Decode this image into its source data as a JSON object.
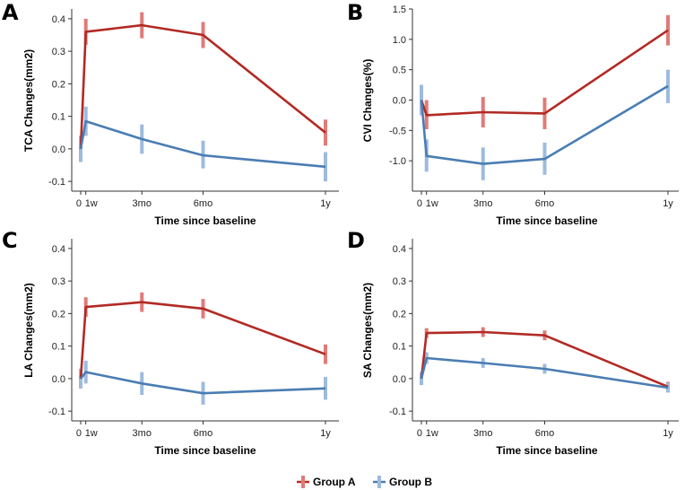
{
  "colors": {
    "group_a_line": "#b22a24",
    "group_a_bar": "#e07b78",
    "group_b_line": "#4a7db3",
    "group_b_bar": "#9dbbdf",
    "axis": "#333333"
  },
  "legend": {
    "items": [
      {
        "label": "Group A",
        "series": "a"
      },
      {
        "label": "Group B",
        "series": "b"
      }
    ]
  },
  "chart_data": [
    {
      "panel": "A",
      "type": "line",
      "title": "",
      "xlabel": "Time since baseline",
      "ylabel": "TCA Changes(mm2)",
      "x": [
        0,
        0.25,
        3,
        6,
        12
      ],
      "xticks": [
        0,
        0.25,
        3,
        6,
        12
      ],
      "xtick_labels": [
        "0",
        "1w",
        "3mo",
        "6mo",
        "1y"
      ],
      "ylim": [
        -0.13,
        0.43
      ],
      "yticks": [
        -0.1,
        0.0,
        0.1,
        0.2,
        0.3,
        0.4
      ],
      "ytick_labels": [
        "-0.1",
        "0.0",
        "0.1",
        "0.2",
        "0.3",
        "0.4"
      ],
      "series": [
        {
          "name": "Group A",
          "key": "a",
          "values": [
            0.0,
            0.36,
            0.38,
            0.35,
            0.05
          ],
          "lower": [
            -0.04,
            0.32,
            0.34,
            0.31,
            0.01
          ],
          "upper": [
            0.04,
            0.4,
            0.42,
            0.39,
            0.09
          ]
        },
        {
          "name": "Group B",
          "key": "b",
          "values": [
            0.0,
            0.085,
            0.03,
            -0.02,
            -0.055
          ],
          "lower": [
            -0.04,
            0.04,
            -0.015,
            -0.06,
            -0.1
          ],
          "upper": [
            0.04,
            0.13,
            0.075,
            0.025,
            -0.01
          ]
        }
      ]
    },
    {
      "panel": "B",
      "type": "line",
      "title": "",
      "xlabel": "Time since baseline",
      "ylabel": "CVI Changes(%)",
      "x": [
        0,
        0.25,
        3,
        6,
        12
      ],
      "xticks": [
        0,
        0.25,
        3,
        6,
        12
      ],
      "xtick_labels": [
        "0",
        "1w",
        "3mo",
        "6mo",
        "1y"
      ],
      "ylim": [
        -1.5,
        1.5
      ],
      "yticks": [
        -1.0,
        -0.5,
        0.0,
        0.5,
        1.0,
        1.5
      ],
      "ytick_labels": [
        "-1.0",
        "-0.5",
        "0.0",
        "0.5",
        "1.0",
        "1.5"
      ],
      "series": [
        {
          "name": "Group A",
          "key": "a",
          "values": [
            0.0,
            -0.25,
            -0.2,
            -0.22,
            1.15
          ],
          "lower": [
            -0.25,
            -0.48,
            -0.45,
            -0.48,
            0.9
          ],
          "upper": [
            0.25,
            0.0,
            0.05,
            0.04,
            1.4
          ]
        },
        {
          "name": "Group B",
          "key": "b",
          "values": [
            0.0,
            -0.92,
            -1.05,
            -0.97,
            0.23
          ],
          "lower": [
            -0.25,
            -1.18,
            -1.32,
            -1.23,
            -0.05
          ],
          "upper": [
            0.25,
            -0.65,
            -0.78,
            -0.7,
            0.5
          ]
        }
      ]
    },
    {
      "panel": "C",
      "type": "line",
      "title": "",
      "xlabel": "Time since baseline",
      "ylabel": "LA Changes(mm2)",
      "x": [
        0,
        0.25,
        3,
        6,
        12
      ],
      "xticks": [
        0,
        0.25,
        3,
        6,
        12
      ],
      "xtick_labels": [
        "0",
        "1w",
        "3mo",
        "6mo",
        "1y"
      ],
      "ylim": [
        -0.13,
        0.43
      ],
      "yticks": [
        -0.1,
        0.0,
        0.1,
        0.2,
        0.3,
        0.4
      ],
      "ytick_labels": [
        "-0.1",
        "0.0",
        "0.1",
        "0.2",
        "0.3",
        "0.4"
      ],
      "series": [
        {
          "name": "Group A",
          "key": "a",
          "values": [
            0.0,
            0.22,
            0.235,
            0.215,
            0.075
          ],
          "lower": [
            -0.03,
            0.19,
            0.205,
            0.185,
            0.045
          ],
          "upper": [
            0.03,
            0.25,
            0.265,
            0.245,
            0.105
          ]
        },
        {
          "name": "Group B",
          "key": "b",
          "values": [
            0.0,
            0.02,
            -0.015,
            -0.045,
            -0.03
          ],
          "lower": [
            -0.03,
            -0.015,
            -0.05,
            -0.08,
            -0.065
          ],
          "upper": [
            0.03,
            0.055,
            0.02,
            -0.01,
            0.005
          ]
        }
      ]
    },
    {
      "panel": "D",
      "type": "line",
      "title": "",
      "xlabel": "Time since baseline",
      "ylabel": "SA Changes(mm2)",
      "x": [
        0,
        0.25,
        3,
        6,
        12
      ],
      "xticks": [
        0,
        0.25,
        3,
        6,
        12
      ],
      "xtick_labels": [
        "0",
        "1w",
        "3mo",
        "6mo",
        "1y"
      ],
      "ylim": [
        -0.13,
        0.43
      ],
      "yticks": [
        -0.1,
        0.0,
        0.1,
        0.2,
        0.3,
        0.4
      ],
      "ytick_labels": [
        "-0.1",
        "0.0",
        "0.1",
        "0.2",
        "0.3",
        "0.4"
      ],
      "series": [
        {
          "name": "Group A",
          "key": "a",
          "values": [
            0.0,
            0.14,
            0.143,
            0.133,
            -0.025
          ],
          "lower": [
            -0.015,
            0.125,
            0.128,
            0.118,
            -0.04
          ],
          "upper": [
            0.015,
            0.155,
            0.158,
            0.148,
            -0.01
          ]
        },
        {
          "name": "Group B",
          "key": "b",
          "values": [
            0.0,
            0.063,
            0.048,
            0.03,
            -0.028
          ],
          "lower": [
            -0.02,
            0.045,
            0.033,
            0.015,
            -0.043
          ],
          "upper": [
            0.02,
            0.081,
            0.063,
            0.045,
            -0.013
          ]
        }
      ]
    }
  ]
}
